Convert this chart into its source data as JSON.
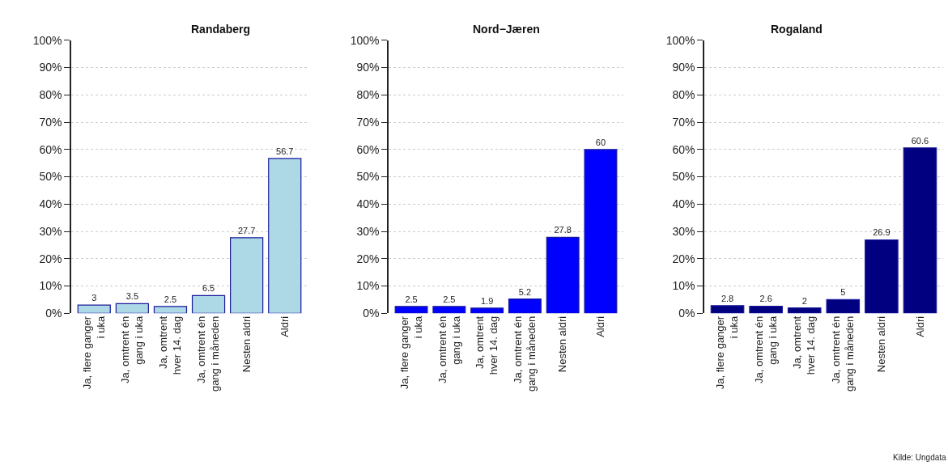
{
  "chart_data": [
    {
      "type": "bar",
      "title": "Randaberg",
      "categories": [
        "Ja, flere ganger\ni uka",
        "Ja, omtrent én\ngang i uka",
        "Ja, omtrent\nhver 14. dag",
        "Ja, omtrent én\ngang i måneden",
        "Nesten aldri",
        "Aldri"
      ],
      "values": [
        3,
        3.5,
        2.5,
        6.5,
        27.7,
        56.7
      ],
      "color": "#add8e6",
      "ylim": [
        0,
        100
      ],
      "yticks": [
        {
          "value": 0,
          "label": "0%"
        },
        {
          "value": 10,
          "label": "10%"
        },
        {
          "value": 20,
          "label": "20%"
        },
        {
          "value": 30,
          "label": "30%"
        },
        {
          "value": 40,
          "label": "40%"
        },
        {
          "value": 50,
          "label": "50%"
        },
        {
          "value": 60,
          "label": "60%"
        },
        {
          "value": 70,
          "label": "70%"
        },
        {
          "value": 80,
          "label": "80%"
        },
        {
          "value": 90,
          "label": "90%"
        },
        {
          "value": 100,
          "label": "100%"
        }
      ],
      "grid": "y",
      "data_labels": true
    },
    {
      "type": "bar",
      "title": "Nord−Jæren",
      "categories": [
        "Ja, flere ganger\ni uka",
        "Ja, omtrent én\ngang i uka",
        "Ja, omtrent\nhver 14. dag",
        "Ja, omtrent én\ngang i måneden",
        "Nesten aldri",
        "Aldri"
      ],
      "values": [
        2.5,
        2.5,
        1.9,
        5.2,
        27.8,
        60
      ],
      "color": "#0000ff",
      "ylim": [
        0,
        100
      ],
      "yticks": [
        {
          "value": 0,
          "label": "0%"
        },
        {
          "value": 10,
          "label": "10%"
        },
        {
          "value": 20,
          "label": "20%"
        },
        {
          "value": 30,
          "label": "30%"
        },
        {
          "value": 40,
          "label": "40%"
        },
        {
          "value": 50,
          "label": "50%"
        },
        {
          "value": 60,
          "label": "60%"
        },
        {
          "value": 70,
          "label": "70%"
        },
        {
          "value": 80,
          "label": "80%"
        },
        {
          "value": 90,
          "label": "90%"
        },
        {
          "value": 100,
          "label": "100%"
        }
      ],
      "grid": "y",
      "data_labels": true
    },
    {
      "type": "bar",
      "title": "Rogaland",
      "categories": [
        "Ja, flere ganger\ni uka",
        "Ja, omtrent én\ngang i uka",
        "Ja, omtrent\nhver 14. dag",
        "Ja, omtrent én\ngang i måneden",
        "Nesten aldri",
        "Aldri"
      ],
      "values": [
        2.8,
        2.6,
        2,
        5,
        26.9,
        60.6
      ],
      "color": "#000080",
      "ylim": [
        0,
        100
      ],
      "yticks": [
        {
          "value": 0,
          "label": "0%"
        },
        {
          "value": 10,
          "label": "10%"
        },
        {
          "value": 20,
          "label": "20%"
        },
        {
          "value": 30,
          "label": "30%"
        },
        {
          "value": 40,
          "label": "40%"
        },
        {
          "value": 50,
          "label": "50%"
        },
        {
          "value": 60,
          "label": "60%"
        },
        {
          "value": 70,
          "label": "70%"
        },
        {
          "value": 80,
          "label": "80%"
        },
        {
          "value": 90,
          "label": "90%"
        },
        {
          "value": 100,
          "label": "100%"
        }
      ],
      "grid": "y",
      "data_labels": true,
      "annotations": [
        "Kilde: Ungdata"
      ]
    }
  ]
}
